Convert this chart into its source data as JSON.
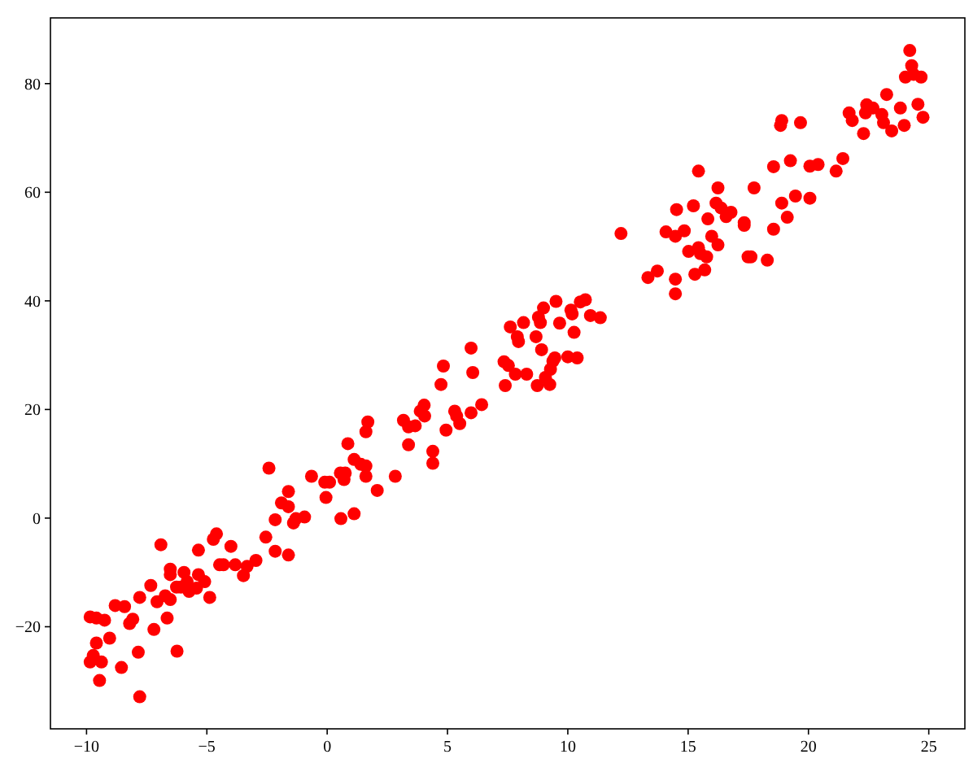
{
  "chart_data": {
    "type": "scatter",
    "marker": "circle",
    "grid": false,
    "xlim": [
      -11.5,
      26.5
    ],
    "ylim": [
      -38.8,
      92.1
    ],
    "xticks": [
      {
        "value": -10,
        "label": "−10"
      },
      {
        "value": -5,
        "label": "−5"
      },
      0,
      5,
      10,
      15,
      20,
      25
    ],
    "yticks": [
      {
        "value": -20,
        "label": "−20"
      },
      0,
      20,
      40,
      60,
      80
    ],
    "series": [
      {
        "color": "#ff0000",
        "x": [
          -9.85,
          -9.59,
          -9.25,
          -9.85,
          -9.72,
          -9.38,
          -9.59,
          -9.46,
          -9.04,
          -8.81,
          -8.42,
          -8.55,
          -8.21,
          -8.08,
          -7.79,
          -7.85,
          -7.79,
          -7.33,
          -7.2,
          -7.07,
          -6.91,
          -6.73,
          -6.65,
          -6.52,
          -6.52,
          -6.52,
          -6.24,
          -6.26,
          -6.08,
          -5.95,
          -5.82,
          -5.74,
          -5.43,
          -5.35,
          -5.09,
          -5.35,
          -4.88,
          -4.73,
          -4.6,
          -4.47,
          -4.31,
          -4.0,
          -3.82,
          -3.48,
          -3.33,
          -2.96,
          -2.55,
          -2.42,
          -2.16,
          -2.16,
          -1.9,
          -1.61,
          -1.61,
          -1.61,
          -1.4,
          -1.3,
          -0.94,
          -0.65,
          -0.1,
          -0.05,
          0.1,
          0.57,
          0.55,
          0.7,
          0.75,
          0.86,
          1.12,
          1.12,
          1.4,
          1.61,
          1.61,
          1.61,
          1.69,
          2.08,
          2.83,
          3.17,
          3.38,
          3.38,
          3.66,
          3.87,
          4.03,
          4.05,
          4.39,
          4.39,
          4.73,
          4.83,
          4.94,
          5.3,
          5.38,
          5.51,
          5.98,
          5.98,
          6.05,
          6.42,
          7.35,
          7.4,
          7.53,
          7.61,
          7.82,
          7.9,
          7.95,
          8.16,
          8.29,
          8.68,
          8.73,
          8.78,
          8.86,
          8.91,
          8.99,
          9.07,
          9.25,
          9.28,
          9.38,
          9.46,
          9.51,
          9.66,
          10.0,
          10.13,
          10.18,
          10.26,
          10.39,
          10.52,
          10.73,
          10.94,
          11.35,
          12.21,
          13.33,
          13.72,
          14.08,
          14.47,
          14.47,
          14.47,
          14.52,
          14.84,
          15.02,
          15.22,
          15.28,
          15.43,
          15.43,
          15.51,
          15.69,
          15.77,
          15.82,
          15.98,
          16.24,
          16.16,
          16.24,
          16.37,
          16.58,
          16.78,
          17.33,
          17.33,
          17.49,
          17.61,
          17.74,
          18.29,
          18.55,
          18.55,
          18.84,
          18.89,
          18.89,
          19.12,
          19.25,
          19.46,
          19.67,
          20.06,
          20.06,
          20.4,
          21.15,
          21.43,
          21.69,
          21.82,
          22.29,
          22.37,
          22.42,
          22.68,
          23.05,
          23.12,
          23.25,
          23.46,
          23.82,
          23.98,
          24.03,
          24.21,
          24.29,
          24.37,
          24.55,
          24.68,
          24.76
        ],
        "values": [
          -18.2,
          -18.4,
          -18.8,
          -26.5,
          -25.3,
          -26.5,
          -23.0,
          -29.9,
          -22.1,
          -16.1,
          -16.3,
          -27.5,
          -19.4,
          -18.6,
          -14.6,
          -24.7,
          -32.9,
          -12.4,
          -20.5,
          -15.4,
          -4.9,
          -14.3,
          -18.4,
          -15.0,
          -9.4,
          -10.4,
          -24.5,
          -12.7,
          -12.7,
          -10.0,
          -11.7,
          -13.5,
          -12.9,
          -10.4,
          -11.7,
          -5.9,
          -14.6,
          -3.9,
          -2.9,
          -8.6,
          -8.6,
          -5.2,
          -8.6,
          -10.6,
          -8.9,
          -7.8,
          -3.5,
          9.2,
          -6.1,
          -0.3,
          2.8,
          2.1,
          4.9,
          -6.8,
          -0.9,
          -0.1,
          0.2,
          7.7,
          6.6,
          3.8,
          6.6,
          -0.1,
          8.3,
          7.1,
          8.3,
          13.7,
          0.8,
          10.8,
          9.9,
          9.6,
          7.7,
          15.9,
          17.7,
          5.1,
          7.7,
          18.0,
          16.8,
          13.5,
          17.0,
          19.7,
          20.8,
          18.8,
          12.3,
          10.1,
          24.6,
          28.0,
          16.2,
          19.7,
          18.8,
          17.4,
          31.3,
          19.4,
          26.8,
          20.9,
          28.8,
          24.4,
          28.1,
          35.2,
          26.5,
          33.4,
          32.5,
          36.0,
          26.5,
          33.4,
          24.4,
          37.0,
          36.0,
          31.0,
          38.7,
          25.9,
          24.6,
          27.4,
          28.9,
          29.5,
          39.9,
          35.9,
          29.7,
          38.3,
          37.6,
          34.2,
          29.5,
          39.8,
          40.2,
          37.3,
          36.9,
          52.4,
          44.3,
          45.5,
          52.7,
          51.9,
          44.0,
          41.3,
          56.8,
          52.9,
          49.1,
          57.5,
          44.9,
          49.8,
          63.9,
          48.7,
          45.7,
          48.1,
          55.1,
          51.9,
          60.8,
          58.0,
          50.3,
          57.1,
          55.5,
          56.3,
          54.4,
          53.9,
          48.1,
          48.1,
          60.8,
          47.5,
          53.2,
          64.7,
          72.3,
          73.2,
          58.0,
          55.4,
          65.8,
          59.3,
          72.8,
          64.8,
          58.9,
          65.1,
          63.9,
          66.2,
          74.6,
          73.2,
          70.8,
          74.6,
          76.1,
          75.5,
          74.3,
          72.8,
          78.0,
          71.3,
          75.5,
          72.3,
          81.2,
          86.1,
          83.3,
          81.7,
          76.2,
          81.2,
          73.8
        ]
      }
    ]
  }
}
